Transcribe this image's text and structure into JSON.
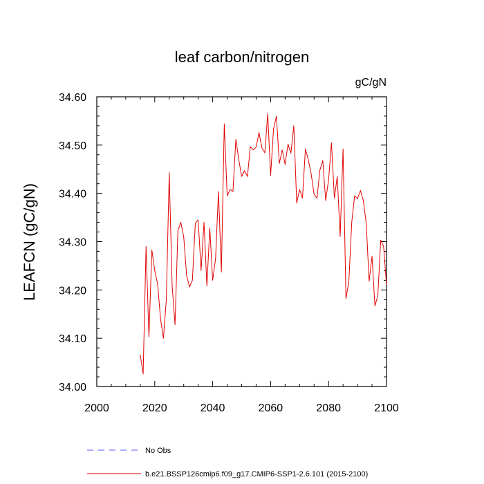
{
  "chart_data": {
    "type": "line",
    "title": "leaf carbon/nitrogen",
    "units": "gC/gN",
    "ylabel": "LEAFCN  (gC/gN)",
    "xlabel": "",
    "xlim": [
      2000,
      2100
    ],
    "ylim": [
      34.0,
      34.6
    ],
    "xticks": [
      "2000",
      "2020",
      "2040",
      "2060",
      "2080",
      "2100"
    ],
    "xtick_values": [
      2000,
      2020,
      2040,
      2060,
      2080,
      2100
    ],
    "yticks": [
      "34.00",
      "34.10",
      "34.20",
      "34.30",
      "34.40",
      "34.50",
      "34.60"
    ],
    "ytick_values": [
      34.0,
      34.1,
      34.2,
      34.3,
      34.4,
      34.5,
      34.6
    ],
    "legend": [
      {
        "label": "No Obs",
        "color": "#5a5aff",
        "style": "dashed"
      },
      {
        "label": "b.e21.BSSP126cmip6.f09_g17.CMIP6-SSP1-2.6.101 (2015-2100)",
        "color": "#e00000",
        "style": "solid"
      }
    ],
    "series": [
      {
        "name": "b.e21.BSSP126cmip6.f09_g17.CMIP6-SSP1-2.6.101 (2015-2100)",
        "color": "#e00000",
        "x": [
          2015,
          2016,
          2017,
          2018,
          2019,
          2020,
          2021,
          2022,
          2023,
          2024,
          2025,
          2026,
          2027,
          2028,
          2029,
          2030,
          2031,
          2032,
          2033,
          2034,
          2035,
          2036,
          2037,
          2038,
          2039,
          2040,
          2041,
          2042,
          2043,
          2044,
          2045,
          2046,
          2047,
          2048,
          2049,
          2050,
          2051,
          2052,
          2053,
          2054,
          2055,
          2056,
          2057,
          2058,
          2059,
          2060,
          2061,
          2062,
          2063,
          2064,
          2065,
          2066,
          2067,
          2068,
          2069,
          2070,
          2071,
          2072,
          2073,
          2074,
          2075,
          2076,
          2077,
          2078,
          2079,
          2080,
          2081,
          2082,
          2083,
          2084,
          2085,
          2086,
          2087,
          2088,
          2089,
          2090,
          2091,
          2092,
          2093,
          2094,
          2095,
          2096,
          2097,
          2098,
          2099,
          2100
        ],
        "values": [
          34.066,
          34.026,
          34.29,
          34.102,
          34.283,
          34.24,
          34.212,
          34.14,
          34.1,
          34.18,
          34.443,
          34.21,
          34.128,
          34.323,
          34.34,
          34.31,
          34.23,
          34.206,
          34.22,
          34.338,
          34.345,
          34.24,
          34.34,
          34.208,
          34.328,
          34.22,
          34.265,
          34.404,
          34.237,
          34.544,
          34.395,
          34.408,
          34.404,
          34.512,
          34.47,
          34.435,
          34.447,
          34.435,
          34.497,
          34.49,
          34.496,
          34.526,
          34.494,
          34.484,
          34.565,
          34.437,
          34.533,
          34.56,
          34.462,
          34.49,
          34.46,
          34.502,
          34.483,
          34.54,
          34.38,
          34.408,
          34.39,
          34.492,
          34.47,
          34.44,
          34.398,
          34.39,
          34.448,
          34.468,
          34.385,
          34.428,
          34.505,
          34.39,
          34.435,
          34.31,
          34.492,
          34.182,
          34.218,
          34.34,
          34.395,
          34.389,
          34.406,
          34.385,
          34.338,
          34.218,
          34.27,
          34.167,
          34.188,
          34.303,
          34.29,
          34.21
        ]
      }
    ]
  }
}
